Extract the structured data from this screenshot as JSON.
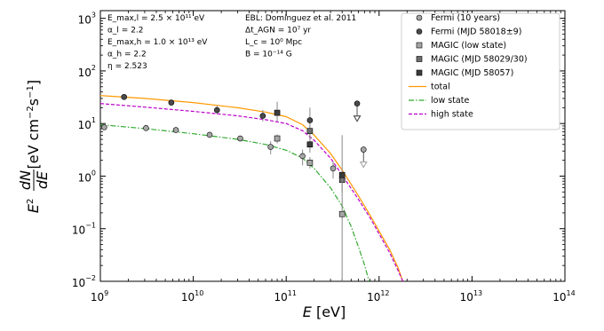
{
  "chart_data": {
    "type": "scatter",
    "x_scale": "log",
    "y_scale": "log",
    "xlim": [
      1000000000.0,
      100000000000000.0
    ],
    "ylim": [
      0.01,
      1400
    ],
    "x_ticks": [
      {
        "value": 1000000000.0,
        "label": "10",
        "exp": "9"
      },
      {
        "value": 10000000000.0,
        "label": "10",
        "exp": "10"
      },
      {
        "value": 100000000000.0,
        "label": "10",
        "exp": "11"
      },
      {
        "value": 1000000000000.0,
        "label": "10",
        "exp": "12"
      },
      {
        "value": 10000000000000.0,
        "label": "10",
        "exp": "13"
      },
      {
        "value": 100000000000000.0,
        "label": "10",
        "exp": "14"
      }
    ],
    "y_ticks": [
      {
        "value": 0.01,
        "label": "10",
        "exp": "−2"
      },
      {
        "value": 0.1,
        "label": "10",
        "exp": "−1"
      },
      {
        "value": 1,
        "label": "10",
        "exp": "0"
      },
      {
        "value": 10,
        "label": "10",
        "exp": "1"
      },
      {
        "value": 100,
        "label": "10",
        "exp": "2"
      },
      {
        "value": 1000,
        "label": "10",
        "exp": "3"
      }
    ],
    "xlabel": "E [eV]",
    "ylabel": "E² dN/dE [eV cm⁻² s⁻¹]",
    "params_left": [
      "E_max,l = 2.5 × 10¹¹ eV",
      "α_l = 2.2",
      "E_max,h = 1.0 × 10¹³ eV",
      "α_h = 2.2",
      "η = 2.523"
    ],
    "params_right": [
      "EBL: Domínguez et al. 2011",
      "Δt_AGN = 10⁷ yr",
      "L_c = 10⁰ Mpc",
      "B = 10⁻¹⁴ G"
    ],
    "legend_position": "top-right",
    "series": [
      {
        "name": "Fermi (10 years)",
        "marker": "circle",
        "color": "#a6a6a6",
        "points": [
          {
            "x": 1100000000.0,
            "y": 8.5
          },
          {
            "x": 3100000000.0,
            "y": 8.2
          },
          {
            "x": 6500000000.0,
            "y": 7.5
          },
          {
            "x": 15000000000.0,
            "y": 6.1
          },
          {
            "x": 32000000000.0,
            "y": 5.2
          },
          {
            "x": 68000000000.0,
            "y": 3.6,
            "ylo": 2.6,
            "yhi": 4.6
          },
          {
            "x": 150000000000.0,
            "y": 2.4,
            "ylo": 1.6,
            "yhi": 3.2
          },
          {
            "x": 320000000000.0,
            "y": 1.4,
            "ylo": 0.9,
            "yhi": 1.9
          },
          {
            "x": 680000000000.0,
            "y": 3.2,
            "upper_limit": true
          }
        ]
      },
      {
        "name": "Fermi (MJD 58018±9)",
        "marker": "circle",
        "color": "#4a4a4a",
        "points": [
          {
            "x": 1800000000.0,
            "y": 32
          },
          {
            "x": 5800000000.0,
            "y": 25
          },
          {
            "x": 18000000000.0,
            "y": 18,
            "ylo": 15,
            "yhi": 22
          },
          {
            "x": 56000000000.0,
            "y": 14,
            "ylo": 11,
            "yhi": 18
          },
          {
            "x": 180000000000.0,
            "y": 11.5,
            "ylo": 5,
            "yhi": 20
          },
          {
            "x": 580000000000.0,
            "y": 24,
            "upper_limit": true
          }
        ]
      },
      {
        "name": "MAGIC (low state)",
        "marker": "square",
        "color": "#a6a6a6",
        "points": [
          {
            "x": 80000000000.0,
            "y": 5.2,
            "ylo": 4.2,
            "yhi": 6.2
          },
          {
            "x": 180000000000.0,
            "y": 1.8,
            "ylo": 1.4,
            "yhi": 2.3
          },
          {
            "x": 400000000000.0,
            "y": 0.19,
            "ylo": 0.008,
            "yhi": 0.55
          }
        ]
      },
      {
        "name": "MAGIC (MJD 58029/30)",
        "marker": "square",
        "color": "#6e6e6e",
        "points": [
          {
            "x": 180000000000.0,
            "y": 7.2,
            "ylo": 5.5,
            "yhi": 9.5
          },
          {
            "x": 400000000000.0,
            "y": 0.85,
            "ylo": 0.55,
            "yhi": 1.2
          }
        ]
      },
      {
        "name": "MAGIC (MJD 58057)",
        "marker": "square",
        "color": "#3c3c3c",
        "points": [
          {
            "x": 80000000000.0,
            "y": 16,
            "ylo": 11,
            "yhi": 26
          },
          {
            "x": 180000000000.0,
            "y": 4.0,
            "ylo": 2.8,
            "yhi": 5.5
          },
          {
            "x": 400000000000.0,
            "y": 1.05,
            "ylo": 0.5,
            "yhi": 6
          }
        ]
      }
    ],
    "curves": [
      {
        "name": "total",
        "color": "#ff9900",
        "dash": "solid",
        "points": [
          [
            1000000000.0,
            34
          ],
          [
            3000000000.0,
            30
          ],
          [
            10000000000.0,
            25
          ],
          [
            30000000000.0,
            20
          ],
          [
            60000000000.0,
            16.5
          ],
          [
            100000000000.0,
            13.5
          ],
          [
            150000000000.0,
            9.5
          ],
          [
            200000000000.0,
            6
          ],
          [
            300000000000.0,
            2.7
          ],
          [
            400000000000.0,
            1.3
          ],
          [
            600000000000.0,
            0.42
          ],
          [
            800000000000.0,
            0.18
          ],
          [
            1000000000000.0,
            0.09
          ],
          [
            1300000000000.0,
            0.04
          ],
          [
            1600000000000.0,
            0.018
          ],
          [
            1800000000000.0,
            0.01
          ]
        ]
      },
      {
        "name": "low state",
        "color": "#33aa33",
        "dash": "dashdot",
        "points": [
          [
            1000000000.0,
            9.5
          ],
          [
            3000000000.0,
            8
          ],
          [
            10000000000.0,
            6.4
          ],
          [
            30000000000.0,
            5
          ],
          [
            60000000000.0,
            4
          ],
          [
            100000000000.0,
            3.1
          ],
          [
            150000000000.0,
            2.2
          ],
          [
            200000000000.0,
            1.4
          ],
          [
            300000000000.0,
            0.6
          ],
          [
            400000000000.0,
            0.27
          ],
          [
            500000000000.0,
            0.11
          ],
          [
            600000000000.0,
            0.045
          ],
          [
            700000000000.0,
            0.02
          ],
          [
            780000000000.0,
            0.01
          ]
        ]
      },
      {
        "name": "high state",
        "color": "#bb00cc",
        "dash": "dashed",
        "points": [
          [
            1000000000.0,
            24
          ],
          [
            3000000000.0,
            20.5
          ],
          [
            10000000000.0,
            17
          ],
          [
            30000000000.0,
            14
          ],
          [
            60000000000.0,
            11.8
          ],
          [
            100000000000.0,
            10
          ],
          [
            150000000000.0,
            7.3
          ],
          [
            200000000000.0,
            4.8
          ],
          [
            300000000000.0,
            2.2
          ],
          [
            400000000000.0,
            1.05
          ],
          [
            600000000000.0,
            0.36
          ],
          [
            800000000000.0,
            0.16
          ],
          [
            1000000000000.0,
            0.08
          ],
          [
            1300000000000.0,
            0.035
          ],
          [
            1600000000000.0,
            0.016
          ],
          [
            1800000000000.0,
            0.01
          ]
        ]
      }
    ]
  }
}
